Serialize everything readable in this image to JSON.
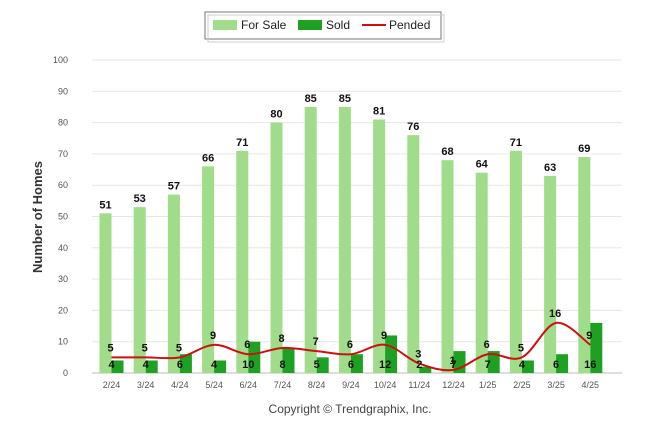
{
  "chart_data": {
    "type": "bar",
    "ylabel": "Number of Homes",
    "ylim": [
      0,
      100
    ],
    "yticks": [
      0,
      10,
      20,
      30,
      40,
      50,
      60,
      70,
      80,
      90,
      100
    ],
    "grid": true,
    "legend_position": "top-center",
    "categories": [
      "2/24",
      "3/24",
      "4/24",
      "5/24",
      "6/24",
      "7/24",
      "8/24",
      "9/24",
      "10/24",
      "11/24",
      "12/24",
      "1/25",
      "2/25",
      "3/25",
      "4/25"
    ],
    "series": [
      {
        "name": "For Sale",
        "type": "bar",
        "color": "#a0dc8a",
        "values": [
          51,
          53,
          57,
          66,
          71,
          80,
          85,
          85,
          81,
          76,
          68,
          64,
          71,
          63,
          69
        ]
      },
      {
        "name": "Sold",
        "type": "bar",
        "color": "#1ea023",
        "values": [
          4,
          4,
          6,
          4,
          10,
          8,
          5,
          6,
          12,
          2,
          7,
          7,
          4,
          6,
          16
        ]
      },
      {
        "name": "Pended",
        "type": "line",
        "color": "#cc1111",
        "values": [
          5,
          5,
          5,
          9,
          6,
          8,
          7,
          6,
          9,
          3,
          1,
          6,
          5,
          16,
          9
        ]
      }
    ]
  },
  "copyright": "Copyright © Trendgraphix, Inc."
}
